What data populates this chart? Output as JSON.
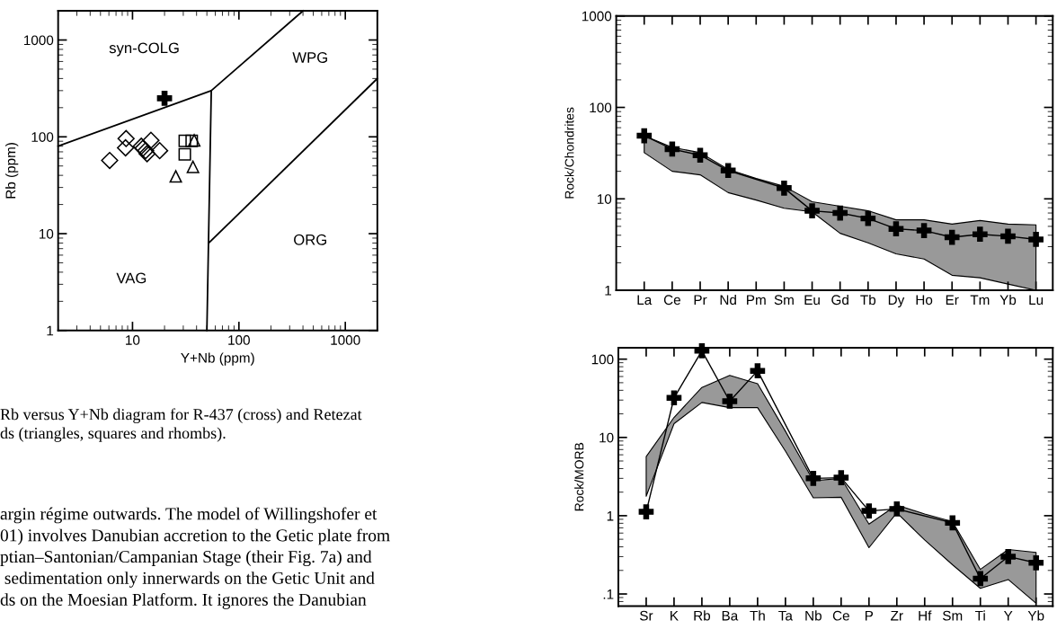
{
  "chart_data": [
    {
      "type": "scatter",
      "xlabel": "Y+Nb (ppm)",
      "ylabel": "Rb (ppm)",
      "log": "xy",
      "xlim": [
        2,
        2000
      ],
      "ylim": [
        1,
        2000
      ],
      "xticks": [
        10,
        100,
        1000
      ],
      "yticks": [
        1,
        10,
        100,
        1000
      ],
      "grid": false,
      "series": [
        {
          "type": "line",
          "color": "#000000",
          "marker": "none",
          "x": [
            2,
            55,
            400
          ],
          "values": [
            80,
            300,
            2000
          ]
        },
        {
          "type": "line",
          "color": "#000000",
          "marker": "none",
          "x": [
            50,
            55
          ],
          "values": [
            1,
            300
          ]
        },
        {
          "type": "line",
          "color": "#000000",
          "marker": "none",
          "x": [
            52,
            2000
          ],
          "values": [
            8,
            400
          ]
        },
        {
          "type": "scatter",
          "color": "#000000",
          "marker": "cross",
          "x": [
            20
          ],
          "values": [
            250
          ]
        },
        {
          "type": "scatter",
          "color": "#000000",
          "marker": "diamond",
          "x": [
            6.1,
            8.7,
            8.6,
            12.5,
            13.3,
            13.7,
            14.9,
            18,
            12.1
          ],
          "values": [
            57,
            96,
            77,
            76,
            72,
            67,
            92,
            72,
            80
          ]
        },
        {
          "type": "scatter",
          "color": "#000000",
          "marker": "square",
          "x": [
            31,
            31,
            36
          ],
          "values": [
            91,
            66,
            91
          ]
        },
        {
          "type": "scatter",
          "color": "#000000",
          "marker": "triangle",
          "x": [
            25.5,
            37,
            38
          ],
          "values": [
            39,
            49,
            92
          ]
        }
      ],
      "annotations": [
        "syn-COLG",
        "WPG",
        "ORG",
        "VAG",
        "Rb versus Y+Nb diagram for R-437 (cross) and Retezat\nds (triangles, squares and rhombs).",
        "argin régime outwards. The model of Willingshofer et\n01) involves Danubian accretion to the Getic plate from\nptian–Santonian/Campanian Stage (their Fig. 7a) and\n sedimentation only innerwards on the Getic Unit and\nds on the Moesian Platform. It ignores the Danubian"
      ]
    },
    {
      "type": "line",
      "ylabel": "Rock/Chondrites",
      "log": true,
      "ylim": [
        1,
        1000
      ],
      "yticks": [
        1,
        10,
        100,
        1000
      ],
      "grid": false,
      "marker": "cross",
      "line_style": "solid",
      "categories": [
        "La",
        "Ce",
        "Pr",
        "Nd",
        "Pm",
        "Sm",
        "Eu",
        "Gd",
        "Tb",
        "Dy",
        "Ho",
        "Er",
        "Tm",
        "Yb",
        "Lu"
      ],
      "series": [
        {
          "color": "#000000",
          "values": [
            49,
            35,
            30,
            20.4,
            null,
            13.1,
            7.4,
            7.0,
            6.1,
            4.7,
            4.5,
            3.8,
            4.1,
            3.9,
            3.6
          ],
          "upper": [
            49,
            36.6,
            32,
            21,
            16.7,
            13.7,
            9.3,
            8.3,
            7.4,
            5.9,
            5.9,
            5.3,
            5.8,
            5.3,
            5.2
          ],
          "lower": [
            32,
            20,
            18.3,
            11.7,
            9.7,
            7.9,
            7.2,
            4.2,
            3.3,
            2.5,
            2.2,
            1.46,
            1.37,
            1.17,
            1.0
          ]
        }
      ]
    },
    {
      "type": "line",
      "ylabel": "Rock/MORB",
      "log": true,
      "ylim": [
        0.07,
        140
      ],
      "yticks": [
        {
          "value": 0.1,
          "label": ".1"
        },
        1,
        10,
        100
      ],
      "grid": false,
      "marker": "cross",
      "line_style": "solid",
      "categories": [
        "Sr",
        "K",
        "Rb",
        "Ba",
        "Th",
        "Ta",
        "Nb",
        "Ce",
        "P",
        "Zr",
        "Hf",
        "Sm",
        "Ti",
        "Y",
        "Yb"
      ],
      "series": [
        {
          "color": "#000000",
          "values": [
            1.12,
            32,
            128,
            29,
            71,
            null,
            3.0,
            3.06,
            1.15,
            1.22,
            null,
            0.81,
            0.157,
            0.3,
            0.25
          ],
          "upper": [
            5.7,
            18,
            43.5,
            62,
            48.5,
            12,
            2.8,
            3.0,
            0.78,
            1.37,
            1.05,
            0.84,
            0.206,
            0.37,
            0.34
          ],
          "lower": [
            1.77,
            15,
            28,
            24,
            24,
            6.7,
            1.69,
            1.72,
            0.39,
            1.09,
            0.49,
            0.236,
            0.118,
            0.153,
            0.076
          ]
        }
      ]
    }
  ]
}
